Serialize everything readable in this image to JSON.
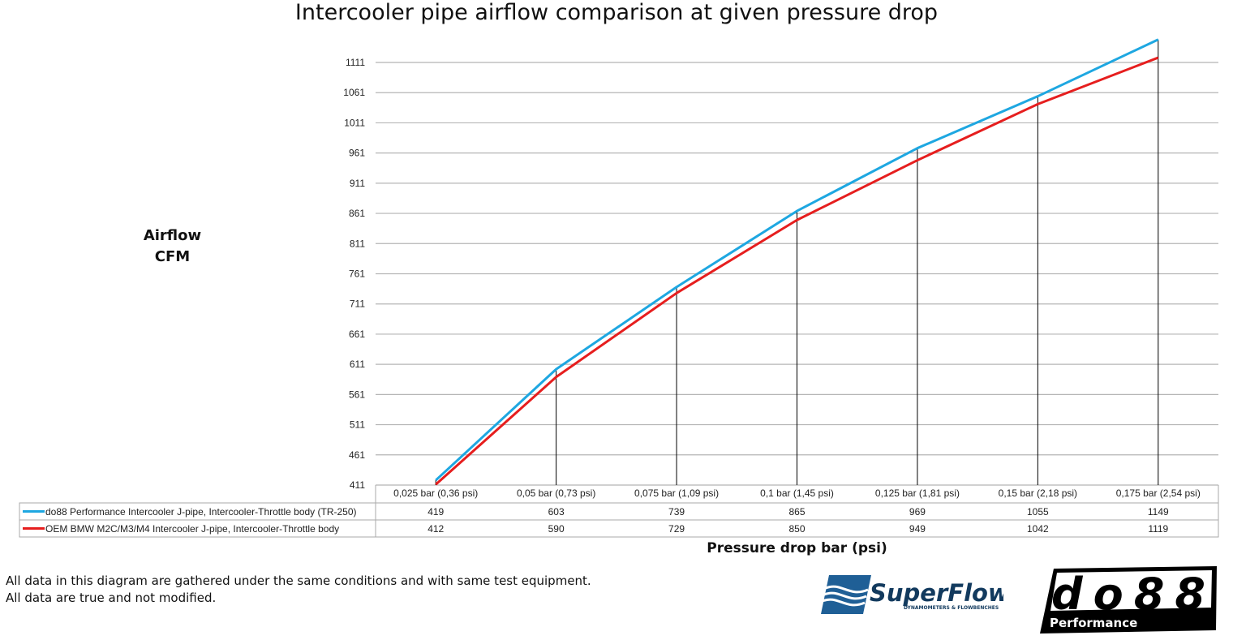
{
  "chart_data": {
    "type": "line",
    "title": "Intercooler pipe airflow comparison at given pressure drop",
    "ylabel": [
      "Airflow",
      "CFM"
    ],
    "xlabel": "Pressure drop bar (psi)",
    "categories": [
      "0,025 bar (0,36 psi)",
      "0,05 bar (0,73 psi)",
      "0,075 bar (1,09 psi)",
      "0,1 bar (1,45 psi)",
      "0,125 bar (1,81 psi)",
      "0,15 bar (2,18 psi)",
      "0,175 bar (2,54 psi)"
    ],
    "yticks": [
      411,
      461,
      511,
      561,
      611,
      661,
      711,
      761,
      811,
      861,
      911,
      961,
      1011,
      1061,
      1111
    ],
    "ylim": [
      411,
      1150
    ],
    "grid": true,
    "legend": "data-table-bottom",
    "series": [
      {
        "name": "do88 Performance Intercooler J-pipe, Intercooler-Throttle body (TR-250)",
        "color": "#1ea7e1",
        "values": [
          419,
          603,
          739,
          865,
          969,
          1055,
          1149
        ]
      },
      {
        "name": "OEM BMW M2C/M3/M4 Intercooler J-pipe, Intercooler-Throttle body",
        "color": "#e61e1e",
        "values": [
          412,
          590,
          729,
          850,
          949,
          1042,
          1119
        ]
      }
    ]
  },
  "notes": [
    "All data in this diagram are gathered under the same conditions and with same test equipment.",
    "All data are true and not modified."
  ],
  "logos": {
    "superflow": "SuperFlow DYNAMOMETERS & FLOWBENCHES",
    "do88": "do88 Performance"
  }
}
